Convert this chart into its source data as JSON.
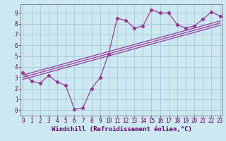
{
  "x_data": [
    0,
    1,
    2,
    3,
    4,
    5,
    6,
    7,
    8,
    9,
    10,
    11,
    12,
    13,
    14,
    15,
    16,
    17,
    18,
    19,
    20,
    21,
    22,
    23
  ],
  "y_data": [
    3.5,
    2.7,
    2.5,
    3.2,
    2.6,
    2.3,
    0.1,
    0.2,
    2.0,
    3.0,
    5.2,
    8.5,
    8.3,
    7.6,
    7.8,
    9.3,
    9.0,
    9.0,
    7.9,
    7.6,
    7.8,
    8.4,
    9.1,
    8.7
  ],
  "reg_lines": [
    {
      "x": [
        0,
        23
      ],
      "y": [
        3.05,
        8.05
      ]
    },
    {
      "x": [
        0,
        23
      ],
      "y": [
        3.25,
        8.25
      ]
    },
    {
      "x": [
        0,
        23
      ],
      "y": [
        2.85,
        7.85
      ]
    }
  ],
  "bg_color": "#cce8f0",
  "grid_color": "#aaccdd",
  "line_color": "#993399",
  "xlim": [
    -0.3,
    23.3
  ],
  "ylim": [
    -0.5,
    9.8
  ],
  "xlabel": "Windchill (Refroidissement éolien,°C)",
  "xticks": [
    0,
    1,
    2,
    3,
    4,
    5,
    6,
    7,
    8,
    9,
    10,
    11,
    12,
    13,
    14,
    15,
    16,
    17,
    18,
    19,
    20,
    21,
    22,
    23
  ],
  "yticks": [
    0,
    1,
    2,
    3,
    4,
    5,
    6,
    7,
    8,
    9
  ],
  "tick_fontsize": 5.5,
  "xlabel_fontsize": 6.5
}
